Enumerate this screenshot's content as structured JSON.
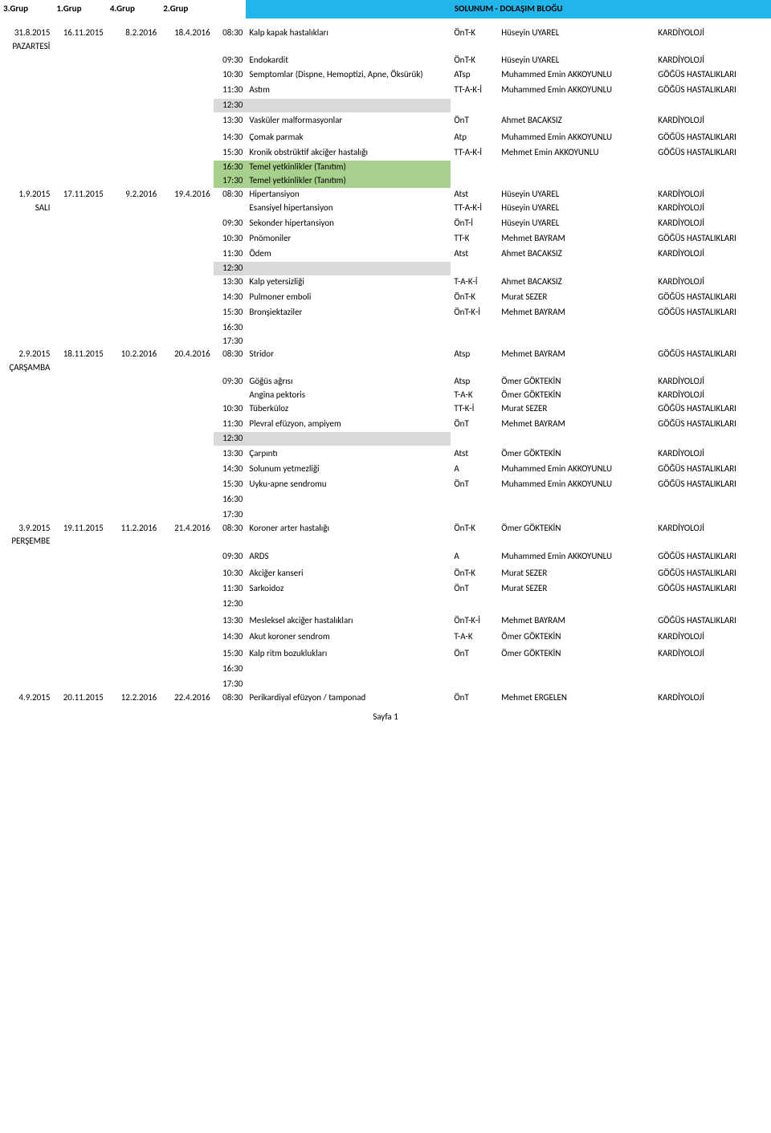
{
  "header": {
    "g3": "3.Grup",
    "g1": "1.Grup",
    "g4": "4.Grup",
    "g2": "2.Grup",
    "title": "SOLUNUM - DOLAŞIM BLOĞU"
  },
  "page_no": "Sayfa 1",
  "days": [
    {
      "dates": [
        "31.8.2015",
        "16.11.2015",
        "8.2.2016",
        "18.4.2016"
      ],
      "dayname": "PAZARTESİ",
      "rows": [
        {
          "time": "08:30",
          "topic": "Kalp kapak hastalıkları",
          "code": "ÖnT-K",
          "inst": "Hüseyin UYAREL",
          "dept": "KARDİYOLOJİ"
        },
        {
          "time": "",
          "topic": ""
        },
        {
          "time": "09:30",
          "topic": "Endokardit",
          "code": "ÖnT-K",
          "inst": "Hüseyin UYAREL",
          "dept": "KARDİYOLOJİ"
        },
        {
          "time": "",
          "topic": ""
        },
        {
          "time": "10:30",
          "topic": "Semptomlar (Dispne, Hemoptizi, Apne, Öksürük)",
          "code": "ATsp",
          "inst": "Muhammed Emin AKKOYUNLU",
          "dept": "GÖĞÜS HASTALIKLARI"
        },
        {
          "time": "",
          "topic": ""
        },
        {
          "time": "11:30",
          "topic": "Astım",
          "code": "TT-A-K-İ",
          "inst": "Muhammed Emin AKKOYUNLU",
          "dept": "GÖĞÜS HASTALIKLARI"
        },
        {
          "time": "",
          "topic": ""
        },
        {
          "time": "12:30",
          "topic": "",
          "grey": true
        },
        {
          "time": "",
          "topic": ""
        },
        {
          "time": "13:30",
          "topic": "Vasküler malformasyonlar",
          "code": "ÖnT",
          "inst": "Ahmet BACAKSIZ",
          "dept": "KARDİYOLOJİ"
        },
        {
          "time": "",
          "topic": ""
        },
        {
          "time": "",
          "topic": ""
        },
        {
          "time": "14:30",
          "topic": "Çomak parmak",
          "code": "Atp",
          "inst": "Muhammed Emin AKKOYUNLU",
          "dept": "GÖĞÜS HASTALIKLARI"
        },
        {
          "time": "",
          "topic": ""
        },
        {
          "time": "15:30",
          "topic": "Kronik obstrüktif akciğer hastalığı",
          "code": "TT-A-K-İ",
          "inst": "Mehmet Emin AKKOYUNLU",
          "dept": "GÖĞÜS HASTALIKLARI"
        },
        {
          "time": "",
          "topic": ""
        },
        {
          "time": "16:30",
          "topic": "Temel yetkinlikler (Tanıtım)",
          "green": true
        },
        {
          "time": "17:30",
          "topic": "Temel yetkinlikler (Tanıtım)",
          "green": true
        }
      ]
    },
    {
      "dates": [
        "1.9.2015",
        "17.11.2015",
        "9.2.2016",
        "19.4.2016"
      ],
      "dayname": "SALI",
      "rows": [
        {
          "time": "08:30",
          "topic": "Hipertansiyon",
          "code": "Atst",
          "inst": "Hüseyin UYAREL",
          "dept": "KARDİYOLOJİ"
        },
        {
          "time": "",
          "topic": "Esansiyel hipertansiyon",
          "code": "TT-A-K-İ",
          "inst": "Hüseyin UYAREL",
          "dept": "KARDİYOLOJİ"
        },
        {
          "time": "",
          "topic": ""
        },
        {
          "time": "09:30",
          "topic": "Sekonder hipertansiyon",
          "code": "ÖnT-İ",
          "inst": "Hüseyin UYAREL",
          "dept": "KARDİYOLOJİ"
        },
        {
          "time": "",
          "topic": ""
        },
        {
          "time": "10:30",
          "topic": "Pnömoniler",
          "code": "TT-K",
          "inst": "Mehmet BAYRAM",
          "dept": "GÖĞÜS HASTALIKLARI"
        },
        {
          "time": "",
          "topic": ""
        },
        {
          "time": "11:30",
          "topic": "Ödem",
          "code": "Atst",
          "inst": "Ahmet BACAKSIZ",
          "dept": "KARDİYOLOJİ"
        },
        {
          "time": "",
          "topic": ""
        },
        {
          "time": "12:30",
          "topic": "",
          "grey": true
        },
        {
          "time": "13:30",
          "topic": "Kalp yetersizliği",
          "code": "T-A-K-İ",
          "inst": "Ahmet BACAKSIZ",
          "dept": "KARDİYOLOJİ"
        },
        {
          "time": "",
          "topic": ""
        },
        {
          "time": "14:30",
          "topic": "Pulmoner emboli",
          "code": "ÖnT-K",
          "inst": "Murat SEZER",
          "dept": "GÖĞÜS HASTALIKLARI"
        },
        {
          "time": "",
          "topic": ""
        },
        {
          "time": "15:30",
          "topic": "Bronşiektaziler",
          "code": "ÖnT-K-İ",
          "inst": "Mehmet BAYRAM",
          "dept": "GÖĞÜS HASTALIKLARI"
        },
        {
          "time": "",
          "topic": ""
        },
        {
          "time": "16:30",
          "topic": ""
        },
        {
          "time": "17:30",
          "topic": ""
        }
      ]
    },
    {
      "dates": [
        "2.9.2015",
        "18.11.2015",
        "10.2.2016",
        "20.4.2016"
      ],
      "dayname": "ÇARŞAMBA",
      "rows": [
        {
          "time": "08:30",
          "topic": "Stridor",
          "code": "Atsp",
          "inst": "Mehmet BAYRAM",
          "dept": "GÖĞÜS HASTALIKLARI"
        },
        {
          "time": "",
          "topic": ""
        },
        {
          "time": "09:30",
          "topic": "Göğüs ağrısı",
          "code": "Atsp",
          "inst": "Ömer GÖKTEKİN",
          "dept": "KARDİYOLOJİ"
        },
        {
          "time": "",
          "topic": "Angina pektoris",
          "code": "T-A-K",
          "inst": "Ömer GÖKTEKİN",
          "dept": "KARDİYOLOJİ"
        },
        {
          "time": "10:30",
          "topic": "Tüberküloz",
          "code": "TT-K-İ",
          "inst": "Murat SEZER",
          "dept": "GÖĞÜS HASTALIKLARI"
        },
        {
          "time": "",
          "topic": ""
        },
        {
          "time": "11:30",
          "topic": "Plevral efüzyon, ampiyem",
          "code": "ÖnT",
          "inst": "Mehmet BAYRAM",
          "dept": "GÖĞÜS HASTALIKLARI"
        },
        {
          "time": "",
          "topic": ""
        },
        {
          "time": "12:30",
          "topic": "",
          "grey": true
        },
        {
          "time": "",
          "topic": ""
        },
        {
          "time": "13:30",
          "topic": "Çarpıntı",
          "code": "Atst",
          "inst": "Ömer GÖKTEKİN",
          "dept": "KARDİYOLOJİ"
        },
        {
          "time": "",
          "topic": ""
        },
        {
          "time": "14:30",
          "topic": "Solunum yetmezliği",
          "code": "A",
          "inst": "Muhammed Emin AKKOYUNLU",
          "dept": "GÖĞÜS HASTALIKLARI"
        },
        {
          "time": "",
          "topic": ""
        },
        {
          "time": "15:30",
          "topic": "Uyku-apne sendromu",
          "code": "ÖnT",
          "inst": "Muhammed Emin AKKOYUNLU",
          "dept": "GÖĞÜS HASTALIKLARI"
        },
        {
          "time": "",
          "topic": ""
        },
        {
          "time": "16:30",
          "topic": ""
        },
        {
          "time": "",
          "topic": ""
        },
        {
          "time": "17:30",
          "topic": ""
        }
      ]
    },
    {
      "dates": [
        "3.9.2015",
        "19.11.2015",
        "11.2.2016",
        "21.4.2016"
      ],
      "dayname": "PERŞEMBE",
      "rows": [
        {
          "time": "08:30",
          "topic": "Koroner arter hastalığı",
          "code": "ÖnT-K",
          "inst": "Ömer GÖKTEKİN",
          "dept": "KARDİYOLOJİ"
        },
        {
          "time": "",
          "topic": ""
        },
        {
          "time": "",
          "topic": ""
        },
        {
          "time": "09:30",
          "topic": "ARDS",
          "code": "A",
          "inst": "Muhammed Emin AKKOYUNLU",
          "dept": "GÖĞÜS HASTALIKLARI"
        },
        {
          "time": "",
          "topic": ""
        },
        {
          "time": "",
          "topic": ""
        },
        {
          "time": "10:30",
          "topic": "Akciğer kanseri",
          "code": "ÖnT-K",
          "inst": "Murat SEZER",
          "dept": "GÖĞÜS HASTALIKLARI"
        },
        {
          "time": "",
          "topic": ""
        },
        {
          "time": "11:30",
          "topic": "Sarkoidoz",
          "code": "ÖnT",
          "inst": "Murat SEZER",
          "dept": "GÖĞÜS HASTALIKLARI"
        },
        {
          "time": "",
          "topic": ""
        },
        {
          "time": "12:30",
          "topic": ""
        },
        {
          "time": "",
          "topic": ""
        },
        {
          "time": "",
          "topic": ""
        },
        {
          "time": "13:30",
          "topic": "Mesleksel akciğer hastalıkları",
          "code": "ÖnT-K-İ",
          "inst": "Mehmet BAYRAM",
          "dept": "GÖĞÜS HASTALIKLARI"
        },
        {
          "time": "",
          "topic": ""
        },
        {
          "time": "",
          "topic": ""
        },
        {
          "time": "14:30",
          "topic": "Akut koroner sendrom",
          "code": "T-A-K",
          "inst": "Ömer GÖKTEKİN",
          "dept": "KARDİYOLOJİ"
        },
        {
          "time": "",
          "topic": ""
        },
        {
          "time": "",
          "topic": ""
        },
        {
          "time": "15:30",
          "topic": "Kalp ritm bozuklukları",
          "code": "ÖnT",
          "inst": "Ömer GÖKTEKİN",
          "dept": "KARDİYOLOJİ"
        },
        {
          "time": "",
          "topic": ""
        },
        {
          "time": "16:30",
          "topic": ""
        },
        {
          "time": "",
          "topic": ""
        },
        {
          "time": "17:30",
          "topic": ""
        }
      ]
    },
    {
      "dates": [
        "4.9.2015",
        "20.11.2015",
        "12.2.2016",
        "22.4.2016"
      ],
      "dayname": "",
      "rows": [
        {
          "time": "08:30",
          "topic": "Perikardiyal efüzyon / tamponad",
          "code": "ÖnT",
          "inst": "Mehmet ERGELEN",
          "dept": "KARDİYOLOJİ"
        }
      ]
    }
  ]
}
